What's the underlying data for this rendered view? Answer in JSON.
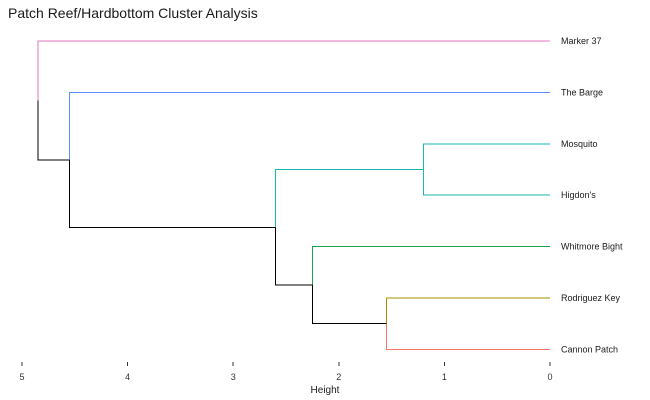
{
  "chart_data": {
    "type": "dendrogram",
    "title": "Patch Reef/Hardbottom Cluster Analysis",
    "xlabel": "Height",
    "xlim": [
      5,
      0
    ],
    "ticks": [
      "5",
      "4",
      "3",
      "2",
      "1",
      "0"
    ],
    "tick_values": [
      5,
      4,
      3,
      2,
      1,
      0
    ],
    "leaves": [
      {
        "label": "Marker 37",
        "color": "#e377c2"
      },
      {
        "label": "The Barge",
        "color": "#5b8ff9"
      },
      {
        "label": "Mosquito",
        "color": "#17b8b0"
      },
      {
        "label": "Higdon's",
        "color": "#17b8b0"
      },
      {
        "label": "Whitmore Bight",
        "color": "#1aa150"
      },
      {
        "label": "Rodriguez Key",
        "color": "#a89000"
      },
      {
        "label": "Cannon Patch",
        "color": "#f8766d"
      }
    ],
    "merges": [
      {
        "a": "Mosquito",
        "b": "Higdon's",
        "height": 1.2,
        "color": "#17b8b0"
      },
      {
        "a": "Rodriguez Key",
        "b": "Cannon Patch",
        "height": 1.55,
        "color": "#000000"
      },
      {
        "a": "Whitmore Bight",
        "b": "Rodriguez Key+Cannon Patch",
        "height": 2.25,
        "color": "#000000"
      },
      {
        "a": "Mosquito+Higdon's",
        "b": "Whitmore Bight+Rodriguez Key+Cannon Patch",
        "height": 2.6,
        "color": "#000000"
      },
      {
        "a": "The Barge",
        "b": "Mosquito+Higdon's+Whitmore Bight+Rodriguez Key+Cannon Patch",
        "height": 4.55,
        "color": "#000000"
      },
      {
        "a": "Marker 37",
        "b": "The Barge+Mosquito+Higdon's+Whitmore Bight+Rodriguez Key+Cannon Patch",
        "height": 4.85,
        "color": "#000000"
      }
    ]
  }
}
